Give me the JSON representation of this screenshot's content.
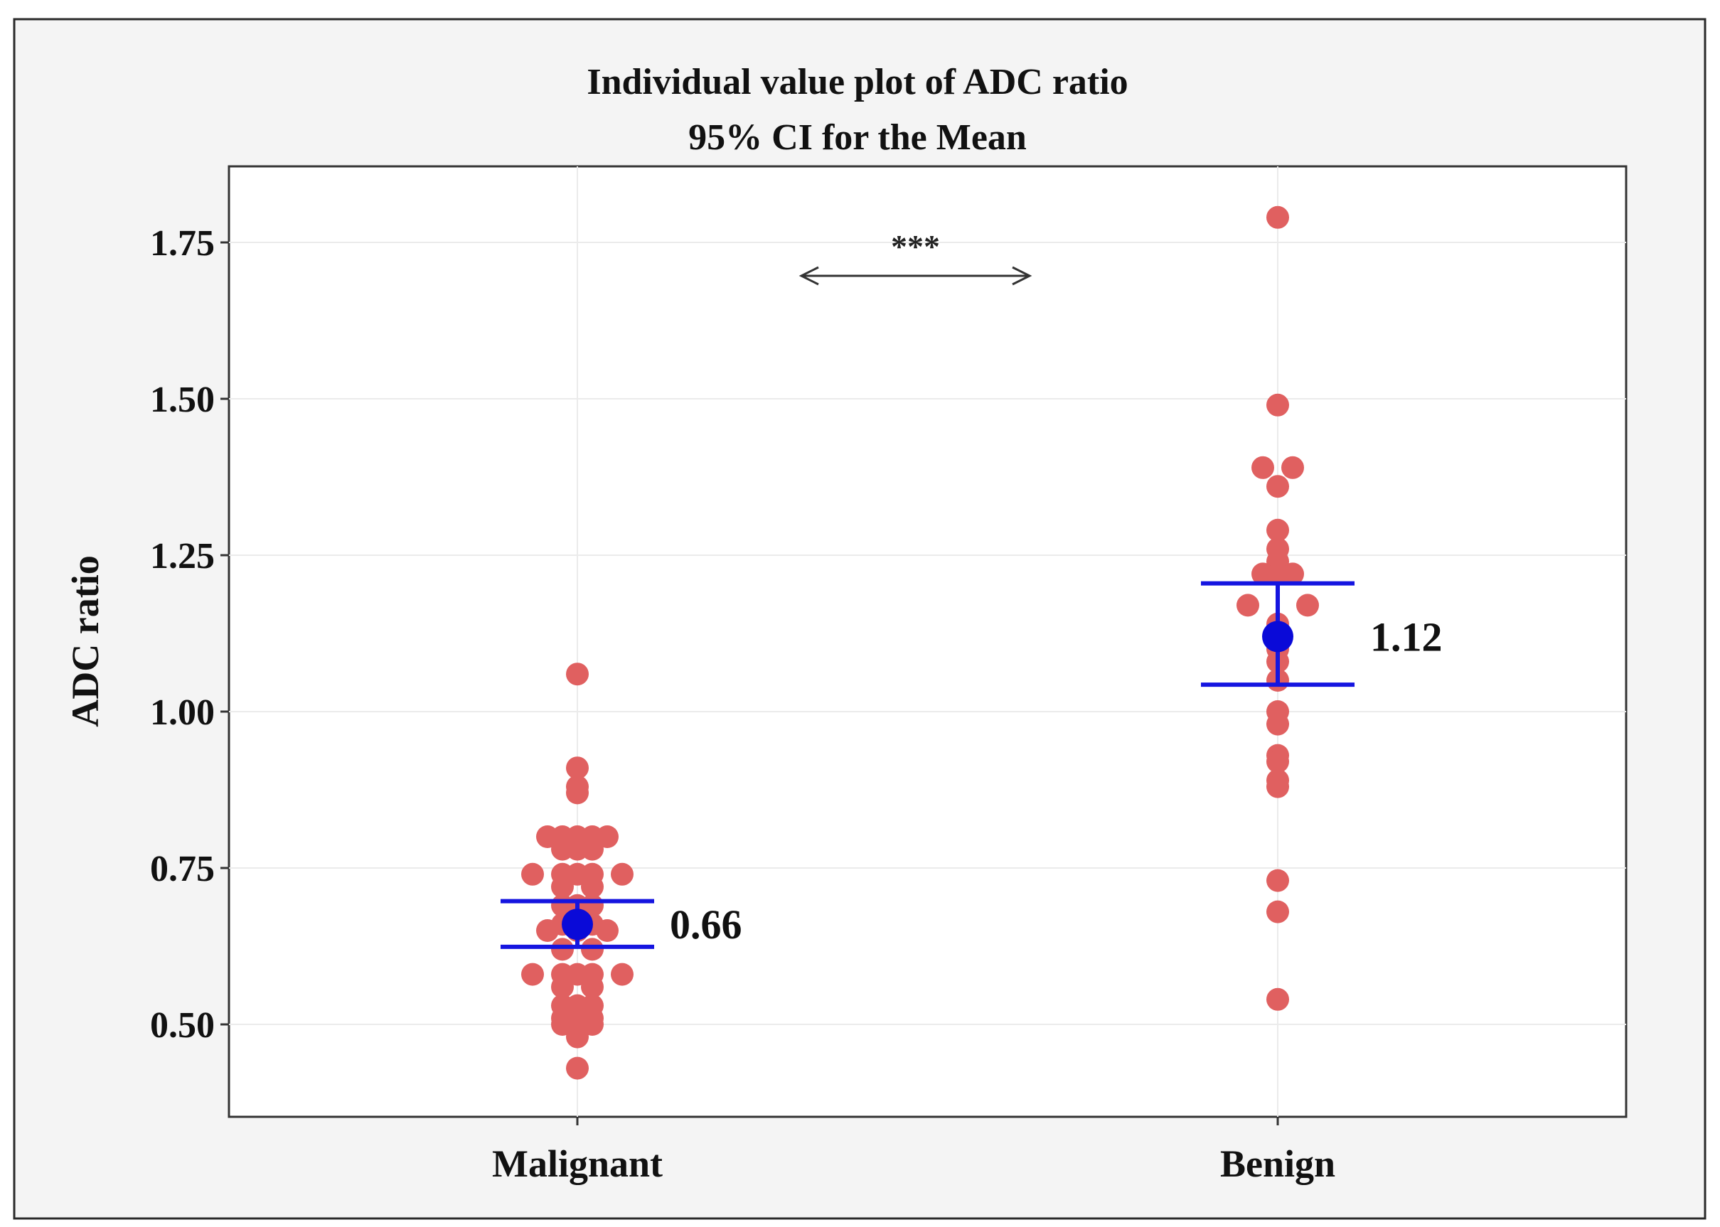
{
  "chart_data": {
    "type": "scatter",
    "title": "Individual value plot of ADC ratio",
    "subtitle": "95% CI for the Mean",
    "ylabel": "ADC ratio",
    "xlabel": "",
    "categories": [
      "Malignant",
      "Benign"
    ],
    "ylim": [
      0.35,
      1.87
    ],
    "yticks": [
      0.5,
      0.75,
      1.0,
      1.25,
      1.5,
      1.75
    ],
    "ytick_labels": [
      "0.50",
      "0.75",
      "1.00",
      "1.25",
      "1.50",
      "1.75"
    ],
    "grid": true,
    "legend": "none",
    "significance": "***",
    "colors": {
      "points": "#E06060",
      "mean": "#0A0AD8",
      "ci": "#1515E0",
      "grid": "#EBEBEB",
      "frame": "#333333",
      "background": "#F4F4F4"
    },
    "series": [
      {
        "category": "Malignant",
        "mean": 0.66,
        "mean_label": "0.66",
        "ci": [
          0.624,
          0.697
        ],
        "points": [
          {
            "y": 1.06,
            "off": 0
          },
          {
            "y": 0.91,
            "off": 0
          },
          {
            "y": 0.88,
            "off": 0
          },
          {
            "y": 0.87,
            "off": 0
          },
          {
            "y": 0.8,
            "off": -2
          },
          {
            "y": 0.8,
            "off": -1
          },
          {
            "y": 0.8,
            "off": 0
          },
          {
            "y": 0.8,
            "off": 1
          },
          {
            "y": 0.8,
            "off": 2
          },
          {
            "y": 0.78,
            "off": -1
          },
          {
            "y": 0.78,
            "off": 0
          },
          {
            "y": 0.78,
            "off": 1
          },
          {
            "y": 0.74,
            "off": -3
          },
          {
            "y": 0.74,
            "off": -1
          },
          {
            "y": 0.74,
            "off": 0
          },
          {
            "y": 0.74,
            "off": 1
          },
          {
            "y": 0.74,
            "off": 3
          },
          {
            "y": 0.72,
            "off": -1
          },
          {
            "y": 0.72,
            "off": 1
          },
          {
            "y": 0.69,
            "off": -1
          },
          {
            "y": 0.69,
            "off": 0
          },
          {
            "y": 0.69,
            "off": 1
          },
          {
            "y": 0.66,
            "off": -1
          },
          {
            "y": 0.66,
            "off": 1
          },
          {
            "y": 0.65,
            "off": -2
          },
          {
            "y": 0.65,
            "off": 0
          },
          {
            "y": 0.65,
            "off": 2
          },
          {
            "y": 0.62,
            "off": -1
          },
          {
            "y": 0.62,
            "off": 1
          },
          {
            "y": 0.58,
            "off": -3
          },
          {
            "y": 0.58,
            "off": -1
          },
          {
            "y": 0.58,
            "off": 0
          },
          {
            "y": 0.58,
            "off": 1
          },
          {
            "y": 0.58,
            "off": 3
          },
          {
            "y": 0.56,
            "off": -1
          },
          {
            "y": 0.56,
            "off": 1
          },
          {
            "y": 0.53,
            "off": -1
          },
          {
            "y": 0.53,
            "off": 0
          },
          {
            "y": 0.53,
            "off": 1
          },
          {
            "y": 0.51,
            "off": -1
          },
          {
            "y": 0.51,
            "off": 1
          },
          {
            "y": 0.5,
            "off": -1
          },
          {
            "y": 0.5,
            "off": 0
          },
          {
            "y": 0.5,
            "off": 1
          },
          {
            "y": 0.48,
            "off": 0
          },
          {
            "y": 0.43,
            "off": 0
          }
        ]
      },
      {
        "category": "Benign",
        "mean": 1.12,
        "mean_label": "1.12",
        "ci": [
          1.043,
          1.205
        ],
        "points": [
          {
            "y": 1.79,
            "off": 0
          },
          {
            "y": 1.49,
            "off": 0
          },
          {
            "y": 1.39,
            "off": -1
          },
          {
            "y": 1.39,
            "off": 1
          },
          {
            "y": 1.36,
            "off": 0
          },
          {
            "y": 1.29,
            "off": 0
          },
          {
            "y": 1.26,
            "off": 0
          },
          {
            "y": 1.24,
            "off": 0
          },
          {
            "y": 1.22,
            "off": -1
          },
          {
            "y": 1.22,
            "off": 0
          },
          {
            "y": 1.22,
            "off": 1
          },
          {
            "y": 1.17,
            "off": -2
          },
          {
            "y": 1.17,
            "off": 2
          },
          {
            "y": 1.14,
            "off": 0
          },
          {
            "y": 1.1,
            "off": 0
          },
          {
            "y": 1.08,
            "off": 0
          },
          {
            "y": 1.05,
            "off": 0
          },
          {
            "y": 1.0,
            "off": 0
          },
          {
            "y": 0.98,
            "off": 0
          },
          {
            "y": 0.93,
            "off": 0
          },
          {
            "y": 0.92,
            "off": 0
          },
          {
            "y": 0.89,
            "off": 0
          },
          {
            "y": 0.88,
            "off": 0
          },
          {
            "y": 0.73,
            "off": 0
          },
          {
            "y": 0.68,
            "off": 0
          },
          {
            "y": 0.54,
            "off": 0
          }
        ]
      }
    ]
  }
}
